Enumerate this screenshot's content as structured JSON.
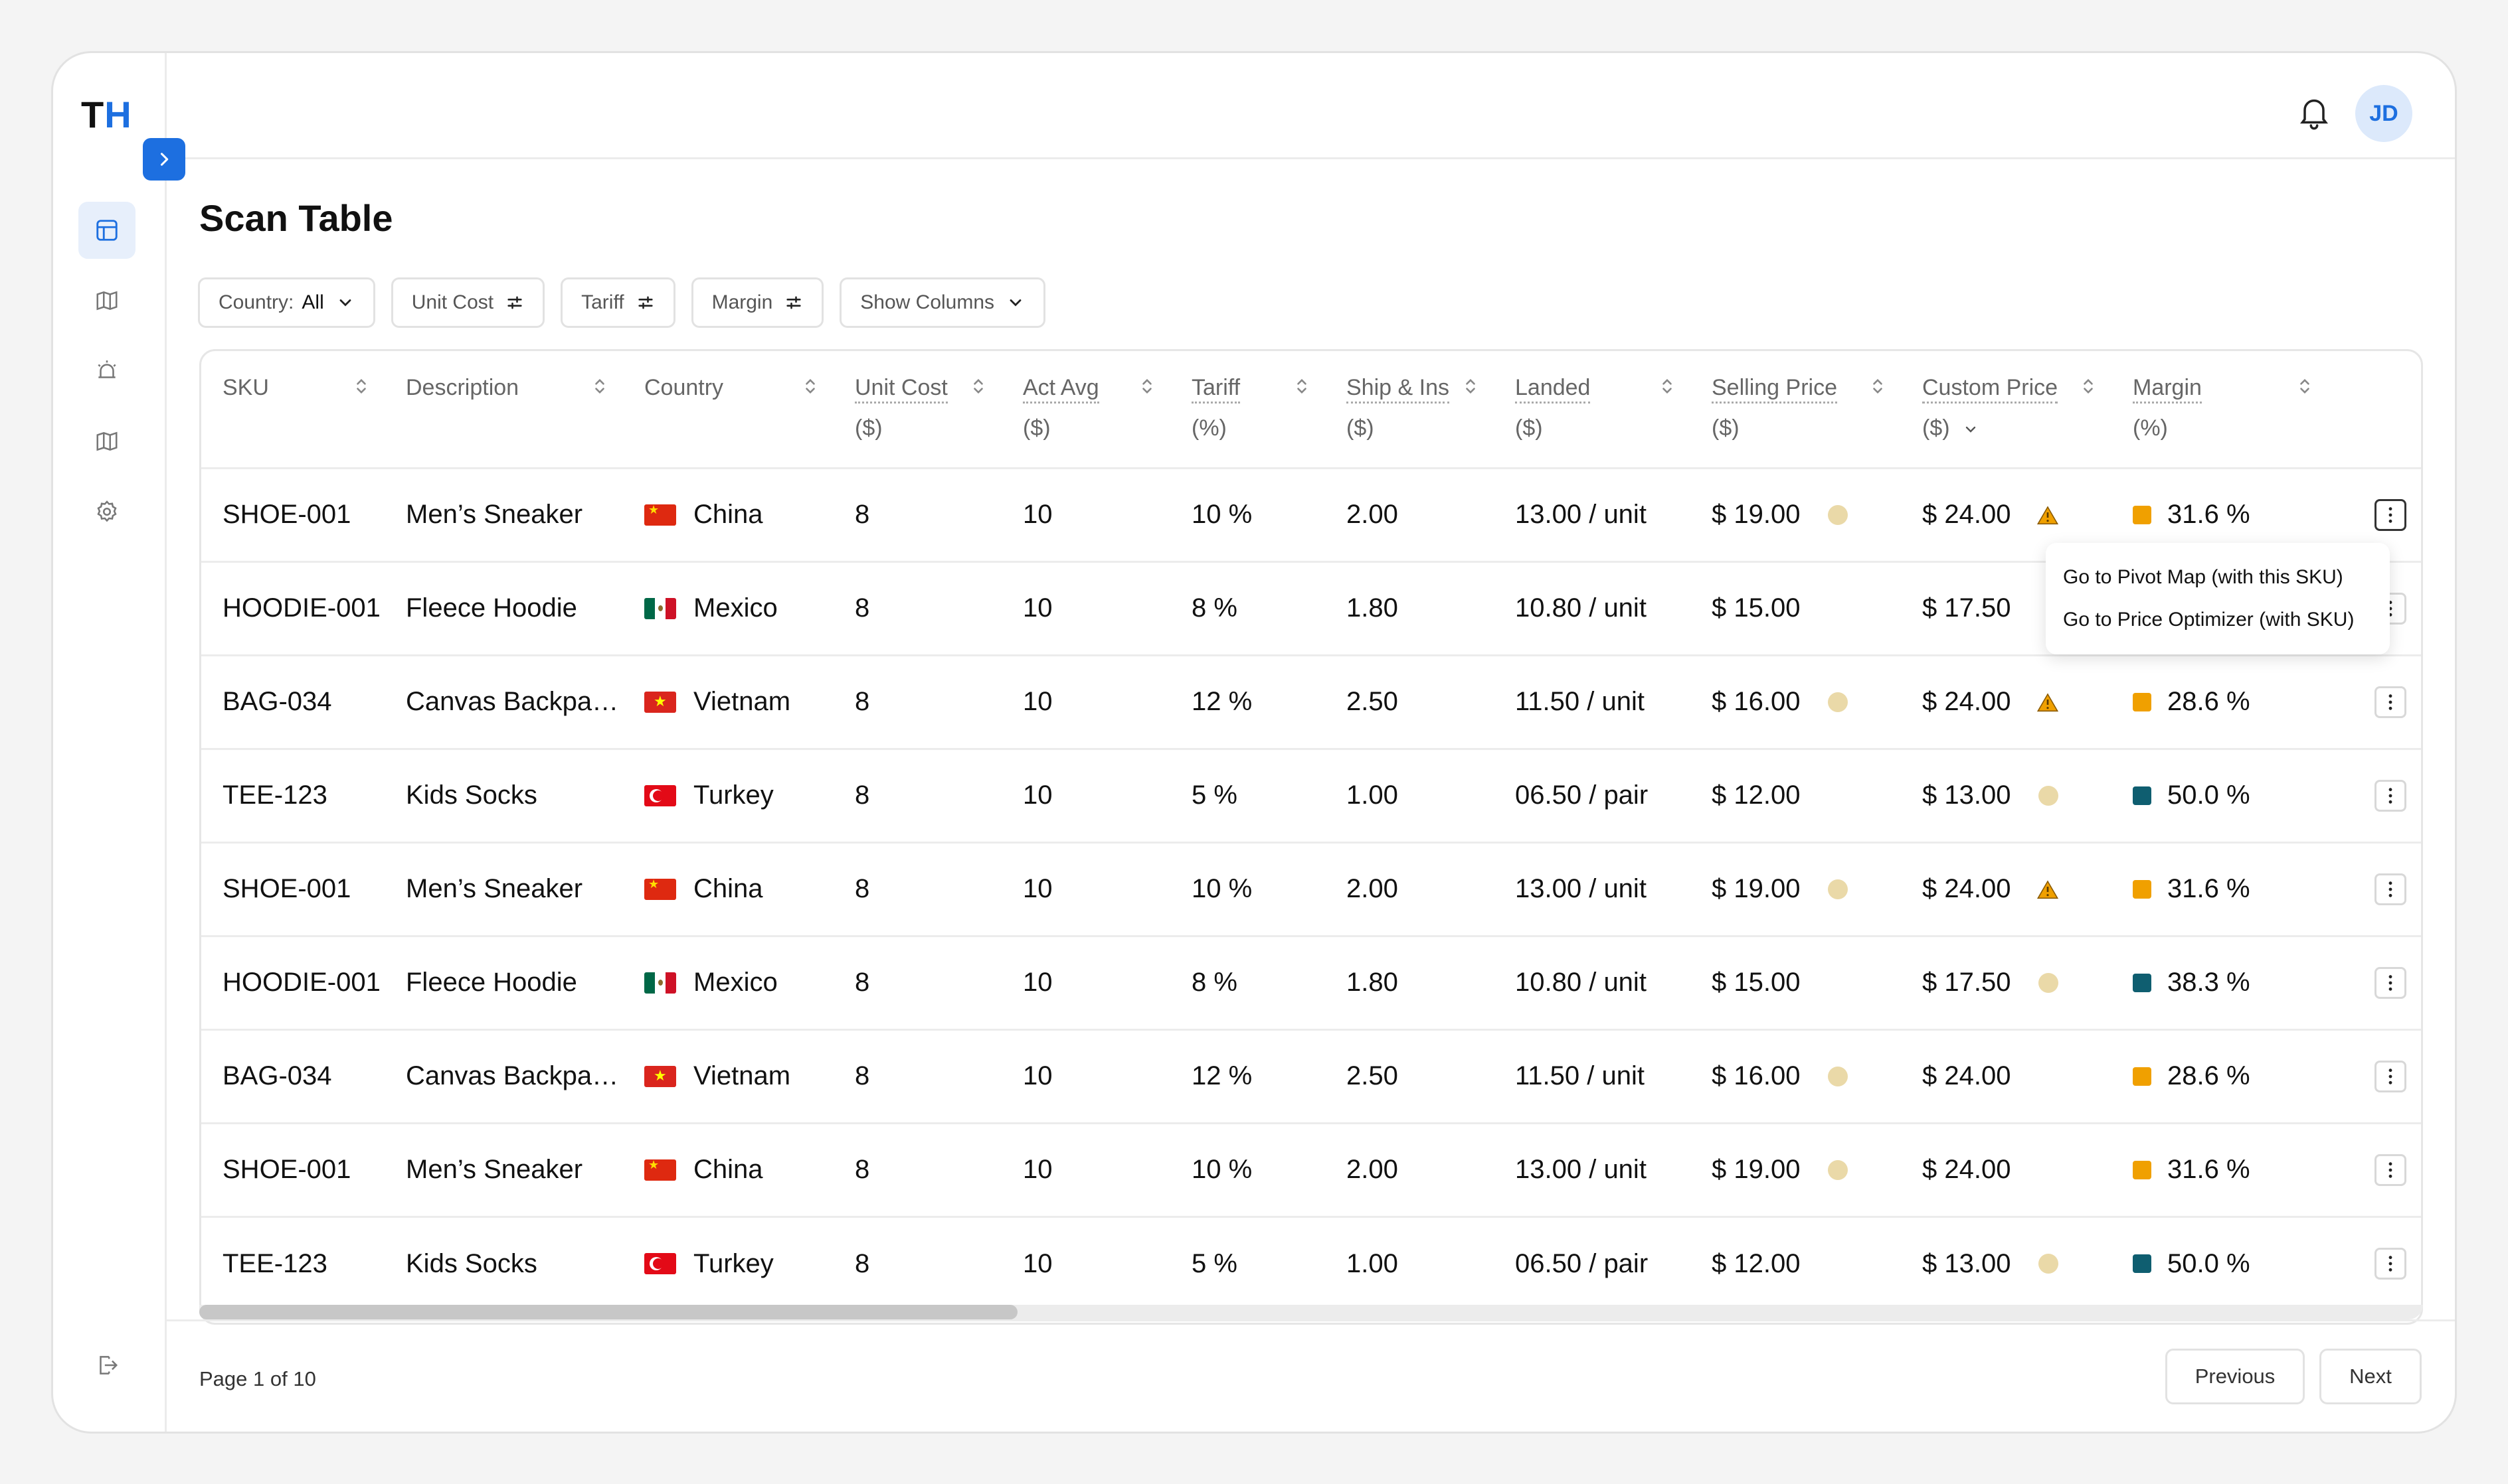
{
  "app": {
    "logo_t": "T",
    "logo_h": "H"
  },
  "header": {
    "avatar_initials": "JD"
  },
  "page": {
    "title": "Scan Table"
  },
  "filters": [
    {
      "label": "Country:",
      "value": "All",
      "icon": "chevron-down-icon"
    },
    {
      "label": "Unit Cost",
      "icon": "sliders-icon"
    },
    {
      "label": "Tariff",
      "icon": "sliders-icon"
    },
    {
      "label": "Margin",
      "icon": "sliders-icon"
    },
    {
      "label": "Show Columns",
      "icon": "chevron-down-icon"
    }
  ],
  "columns": {
    "sku": {
      "label": "SKU"
    },
    "description": {
      "label": "Description"
    },
    "country": {
      "label": "Country"
    },
    "unit_cost": {
      "label": "Unit Cost",
      "unit": "($)"
    },
    "act_avg": {
      "label": "Act Avg",
      "unit": "($)"
    },
    "tariff": {
      "label": "Tariff",
      "unit": "(%)"
    },
    "ship_ins": {
      "label": "Ship & Ins",
      "unit": "($)"
    },
    "landed": {
      "label": "Landed",
      "unit": "($)"
    },
    "selling_price": {
      "label": "Selling Price",
      "unit": "($)"
    },
    "custom_price": {
      "label": "Custom Price",
      "unit": "($)"
    },
    "margin": {
      "label": "Margin",
      "unit": "(%)"
    }
  },
  "rows": [
    {
      "sku": "SHOE-001",
      "description": "Men’s Sneaker",
      "country": "China",
      "flag": "china",
      "unit_cost": "8",
      "act_avg": "10",
      "tariff": "10 %",
      "ship_ins": "2.00",
      "landed": "13.00 / unit",
      "selling_price": "$ 19.00",
      "sp_dot": true,
      "custom_price": "$ 24.00",
      "cp_indicator": "warning",
      "margin": "31.6 %",
      "margin_color": "#f0a000"
    },
    {
      "sku": "HOODIE-001",
      "description": "Fleece Hoodie",
      "country": "Mexico",
      "flag": "mexico",
      "unit_cost": "8",
      "act_avg": "10",
      "tariff": "8 %",
      "ship_ins": "1.80",
      "landed": "10.80 / unit",
      "selling_price": "$ 15.00",
      "sp_dot": false,
      "custom_price": "$ 17.50",
      "cp_indicator": "none",
      "margin": "",
      "margin_color": ""
    },
    {
      "sku": "BAG-034",
      "description": "Canvas Backpac...",
      "country": "Vietnam",
      "flag": "vietnam",
      "unit_cost": "8",
      "act_avg": "10",
      "tariff": "12 %",
      "ship_ins": "2.50",
      "landed": "11.50 / unit",
      "selling_price": "$ 16.00",
      "sp_dot": true,
      "custom_price": "$ 24.00",
      "cp_indicator": "warning",
      "margin": "28.6 %",
      "margin_color": "#f0a000"
    },
    {
      "sku": "TEE-123",
      "description": "Kids Socks",
      "country": "Turkey",
      "flag": "turkey",
      "unit_cost": "8",
      "act_avg": "10",
      "tariff": "5 %",
      "ship_ins": "1.00",
      "landed": "06.50 / pair",
      "selling_price": "$ 12.00",
      "sp_dot": false,
      "custom_price": "$ 13.00",
      "cp_indicator": "dot",
      "margin": "50.0 %",
      "margin_color": "#0f5e70"
    },
    {
      "sku": "SHOE-001",
      "description": "Men’s Sneaker",
      "country": "China",
      "flag": "china",
      "unit_cost": "8",
      "act_avg": "10",
      "tariff": "10 %",
      "ship_ins": "2.00",
      "landed": "13.00 / unit",
      "selling_price": "$ 19.00",
      "sp_dot": true,
      "custom_price": "$ 24.00",
      "cp_indicator": "warning",
      "margin": "31.6 %",
      "margin_color": "#f0a000"
    },
    {
      "sku": "HOODIE-001",
      "description": "Fleece Hoodie",
      "country": "Mexico",
      "flag": "mexico",
      "unit_cost": "8",
      "act_avg": "10",
      "tariff": "8 %",
      "ship_ins": "1.80",
      "landed": "10.80 / unit",
      "selling_price": "$ 15.00",
      "sp_dot": false,
      "custom_price": "$ 17.50",
      "cp_indicator": "dot",
      "margin": "38.3 %",
      "margin_color": "#0f5e70"
    },
    {
      "sku": "BAG-034",
      "description": "Canvas Backpac...",
      "country": "Vietnam",
      "flag": "vietnam",
      "unit_cost": "8",
      "act_avg": "10",
      "tariff": "12 %",
      "ship_ins": "2.50",
      "landed": "11.50 / unit",
      "selling_price": "$ 16.00",
      "sp_dot": true,
      "custom_price": "$ 24.00",
      "cp_indicator": "none",
      "margin": "28.6 %",
      "margin_color": "#f0a000"
    },
    {
      "sku": "SHOE-001",
      "description": "Men’s Sneaker",
      "country": "China",
      "flag": "china",
      "unit_cost": "8",
      "act_avg": "10",
      "tariff": "10 %",
      "ship_ins": "2.00",
      "landed": "13.00 / unit",
      "selling_price": "$ 19.00",
      "sp_dot": true,
      "custom_price": "$ 24.00",
      "cp_indicator": "none",
      "margin": "31.6 %",
      "margin_color": "#f0a000"
    },
    {
      "sku": "TEE-123",
      "description": "Kids Socks",
      "country": "Turkey",
      "flag": "turkey",
      "unit_cost": "8",
      "act_avg": "10",
      "tariff": "5 %",
      "ship_ins": "1.00",
      "landed": "06.50 / pair",
      "selling_price": "$ 12.00",
      "sp_dot": false,
      "custom_price": "$ 13.00",
      "cp_indicator": "dot",
      "margin": "50.0 %",
      "margin_color": "#0f5e70"
    }
  ],
  "row_menu": {
    "items": [
      "Go to Pivot Map (with this SKU)",
      "Go to Price Optimizer (with SKU)"
    ]
  },
  "pagination": {
    "info": "Page 1 of 10",
    "previous": "Previous",
    "next": "Next"
  },
  "colors": {
    "accent": "#1d6fe0",
    "warning": "#f0a000",
    "ok": "#0f5e70",
    "dot": "#ead9a8"
  }
}
